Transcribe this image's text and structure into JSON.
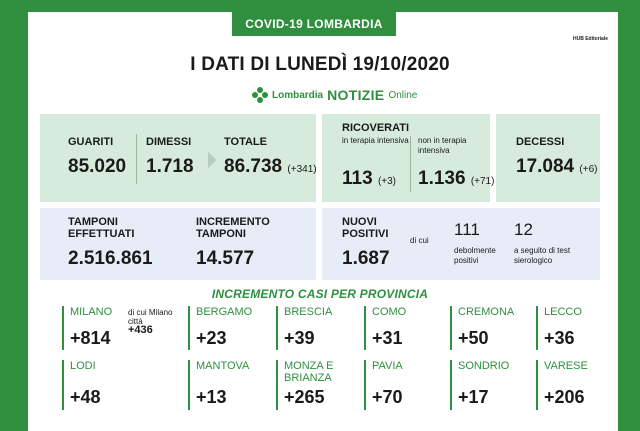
{
  "header": {
    "tag": "COVID-19 LOMBARDIA",
    "hub": "HUB Editoriale",
    "title": "I DATI DI LUNEDÌ 19/10/2020",
    "brand_prefix": "Lombardia",
    "brand_strong": "NOTIZIE",
    "brand_suffix": "Online"
  },
  "summary": {
    "guariti_label": "GUARITI",
    "guariti": "85.020",
    "dimessi_label": "DIMESSI",
    "dimessi": "1.718",
    "totale_label": "TOTALE",
    "totale": "86.738",
    "totale_delta": "(+341)",
    "ricoverati_label": "RICOVERATI",
    "ti_label": "in terapia intensiva",
    "ti": "113",
    "ti_delta": "(+3)",
    "nti_label": "non in terapia intensiva",
    "nti": "1.136",
    "nti_delta": "(+71)",
    "decessi_label": "DECESSI",
    "decessi": "17.084",
    "decessi_delta": "(+6)"
  },
  "tests": {
    "tamponi_label": "TAMPONI EFFETTUATI",
    "tamponi": "2.516.861",
    "incremento_label": "INCREMENTO TAMPONI",
    "incremento": "14.577",
    "nuovi_label": "NUOVI POSITIVI",
    "nuovi": "1.687",
    "dicui": "di cui",
    "debolmente": "111",
    "debolmente_label": "debolmente positivi",
    "sierologico": "12",
    "sierologico_label": "a seguito di test sierologico"
  },
  "province_title": "INCREMENTO CASI PER PROVINCIA",
  "province": {
    "milano": {
      "name": "MILANO",
      "value": "+814",
      "extra_label": "di cui Milano città",
      "extra_value": "+436"
    },
    "bergamo": {
      "name": "BERGAMO",
      "value": "+23"
    },
    "brescia": {
      "name": "BRESCIA",
      "value": "+39"
    },
    "como": {
      "name": "COMO",
      "value": "+31"
    },
    "cremona": {
      "name": "CREMONA",
      "value": "+50"
    },
    "lecco": {
      "name": "LECCO",
      "value": "+36"
    },
    "lodi": {
      "name": "LODI",
      "value": "+48"
    },
    "mantova": {
      "name": "MANTOVA",
      "value": "+13"
    },
    "monza": {
      "name": "MONZA E BRIANZA",
      "value": "+265"
    },
    "pavia": {
      "name": "PAVIA",
      "value": "+70"
    },
    "sondrio": {
      "name": "SONDRIO",
      "value": "+17"
    },
    "varese": {
      "name": "VARESE",
      "value": "+206"
    }
  },
  "colors": {
    "brand_green": "#2f8f3f",
    "panel_green": "#d7ebdc",
    "panel_blue": "#e6edf7"
  }
}
